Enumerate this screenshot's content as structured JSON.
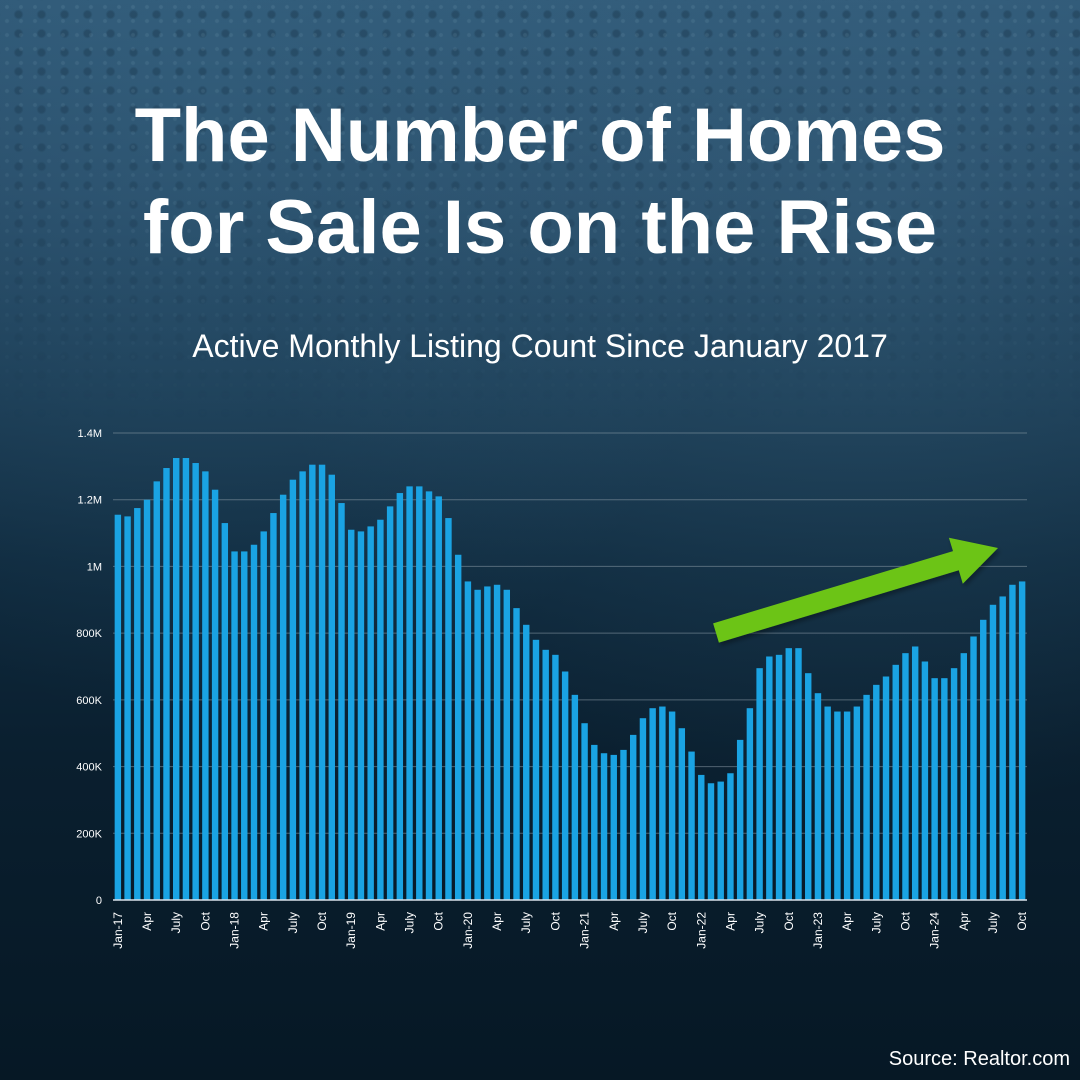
{
  "title_line1": "The Number of Homes",
  "title_line2": "for Sale Is on the Rise",
  "subtitle": "Active Monthly Listing Count Since January 2017",
  "source": "Source: Realtor.com",
  "colors": {
    "bar": "#1aa3e3",
    "arrow": "#6cc417",
    "gridline": "#8a9aa6",
    "text": "#ffffff"
  },
  "chart_data": {
    "type": "bar",
    "ylim": [
      0,
      1400000
    ],
    "y_ticks": [
      0,
      200000,
      400000,
      600000,
      800000,
      1000000,
      1200000,
      1400000
    ],
    "y_tick_labels": [
      "0",
      "200K",
      "400K",
      "600K",
      "800K",
      "1M",
      "1.2M",
      "1.4M"
    ],
    "grid": true,
    "x_tick_labels": [
      "Jan-17",
      "",
      "",
      "Apr",
      "",
      "",
      "July",
      "",
      "",
      "Oct",
      "",
      "",
      "Jan-18",
      "",
      "",
      "Apr",
      "",
      "",
      "July",
      "",
      "",
      "Oct",
      "",
      "",
      "Jan-19",
      "",
      "",
      "Apr",
      "",
      "",
      "July",
      "",
      "",
      "Oct",
      "",
      "",
      "Jan-20",
      "",
      "",
      "Apr",
      "",
      "",
      "July",
      "",
      "",
      "Oct",
      "",
      "",
      "Jan-21",
      "",
      "",
      "Apr",
      "",
      "",
      "July",
      "",
      "",
      "Oct",
      "",
      "",
      "Jan-22",
      "",
      "",
      "Apr",
      "",
      "",
      "July",
      "",
      "",
      "Oct",
      "",
      "",
      "Jan-23",
      "",
      "",
      "Apr",
      "",
      "",
      "July",
      "",
      "",
      "Oct",
      "",
      "",
      "Jan-24",
      "",
      "",
      "Apr",
      "",
      "",
      "July",
      "",
      "",
      "Oct"
    ],
    "values": [
      1155000,
      1150000,
      1175000,
      1200000,
      1255000,
      1295000,
      1325000,
      1325000,
      1310000,
      1285000,
      1230000,
      1130000,
      1045000,
      1045000,
      1065000,
      1105000,
      1160000,
      1215000,
      1260000,
      1285000,
      1305000,
      1305000,
      1275000,
      1190000,
      1110000,
      1105000,
      1120000,
      1140000,
      1180000,
      1220000,
      1240000,
      1240000,
      1225000,
      1210000,
      1145000,
      1035000,
      955000,
      930000,
      940000,
      945000,
      930000,
      875000,
      825000,
      780000,
      750000,
      735000,
      685000,
      615000,
      530000,
      465000,
      440000,
      435000,
      450000,
      495000,
      545000,
      575000,
      580000,
      565000,
      515000,
      445000,
      375000,
      350000,
      355000,
      380000,
      480000,
      575000,
      695000,
      730000,
      735000,
      755000,
      755000,
      680000,
      620000,
      580000,
      565000,
      565000,
      580000,
      615000,
      645000,
      670000,
      705000,
      740000,
      760000,
      715000,
      665000,
      665000,
      695000,
      740000,
      790000,
      840000,
      885000,
      910000,
      945000,
      955000
    ],
    "annotation": "upward trend arrow"
  }
}
